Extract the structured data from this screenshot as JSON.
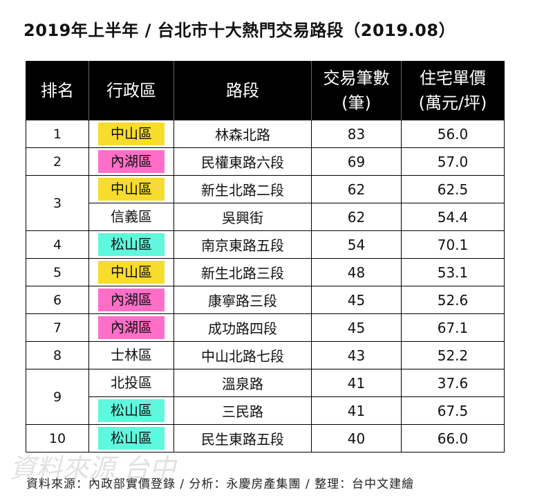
{
  "title": "2019年上半年 /  台北市十大熱門交易路段（2019.08）",
  "colors": {
    "header_bg": "#000000",
    "中山區": "#f7dc2c",
    "內湖區": "#ff6ec7",
    "松山區": "#5ff7de"
  },
  "headers": {
    "rank": "排名",
    "district": "行政區",
    "road": "路段",
    "volume_line1": "交易筆數",
    "volume_line2": "(筆)",
    "price_line1": "住宅單價",
    "price_line2": "(萬元/坪)"
  },
  "rows": [
    {
      "rank": "1",
      "district": "中山區",
      "road": "林森北路",
      "volume": "83",
      "price": "56.0"
    },
    {
      "rank": "2",
      "district": "內湖區",
      "road": "民權東路六段",
      "volume": "69",
      "price": "57.0"
    },
    {
      "rank": "3",
      "district": "中山區",
      "road": "新生北路二段",
      "volume": "62",
      "price": "62.5"
    },
    {
      "rank": "",
      "district": "信義區",
      "road": "吳興街",
      "volume": "62",
      "price": "54.4"
    },
    {
      "rank": "4",
      "district": "松山區",
      "road": "南京東路五段",
      "volume": "54",
      "price": "70.1"
    },
    {
      "rank": "5",
      "district": "中山區",
      "road": "新生北路三段",
      "volume": "48",
      "price": "53.1"
    },
    {
      "rank": "6",
      "district": "內湖區",
      "road": "康寧路三段",
      "volume": "45",
      "price": "52.6"
    },
    {
      "rank": "7",
      "district": "內湖區",
      "road": "成功路四段",
      "volume": "45",
      "price": "67.1"
    },
    {
      "rank": "8",
      "district": "士林區",
      "road": "中山北路七段",
      "volume": "43",
      "price": "52.2"
    },
    {
      "rank": "9",
      "district": "北投區",
      "road": "溫泉路",
      "volume": "41",
      "price": "37.6"
    },
    {
      "rank": "",
      "district": "松山區",
      "road": "三民路",
      "volume": "41",
      "price": "67.5"
    },
    {
      "rank": "10",
      "district": "松山區",
      "road": "民生東路五段",
      "volume": "40",
      "price": "66.0"
    }
  ],
  "footer": "資料來源：內政部實價登錄 / 分析：永慶房產集團 / 整理：台中文建繪"
}
